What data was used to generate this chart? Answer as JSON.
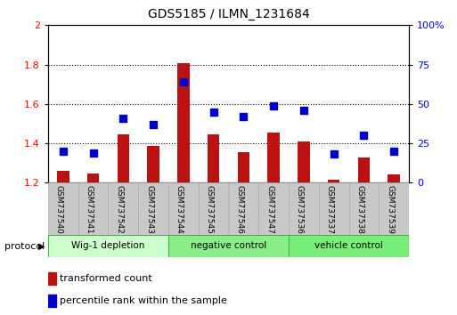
{
  "title": "GDS5185 / ILMN_1231684",
  "samples": [
    "GSM737540",
    "GSM737541",
    "GSM737542",
    "GSM737543",
    "GSM737544",
    "GSM737545",
    "GSM737546",
    "GSM737547",
    "GSM737536",
    "GSM737537",
    "GSM737538",
    "GSM737539"
  ],
  "transformed_count": [
    1.26,
    1.245,
    1.445,
    1.385,
    1.805,
    1.445,
    1.355,
    1.455,
    1.41,
    1.215,
    1.33,
    1.24
  ],
  "percentile_rank": [
    20,
    19,
    41,
    37,
    64,
    45,
    42,
    49,
    46,
    18,
    30,
    20
  ],
  "groups": [
    {
      "label": "Wig-1 depletion",
      "start": 0,
      "end": 3,
      "color": "#ccffcc"
    },
    {
      "label": "negative control",
      "start": 4,
      "end": 7,
      "color": "#88ee88"
    },
    {
      "label": "vehicle control",
      "start": 8,
      "end": 11,
      "color": "#77ee77"
    }
  ],
  "ylim_left": [
    1.2,
    2.0
  ],
  "ylim_right": [
    0,
    100
  ],
  "yticks_left": [
    1.2,
    1.4,
    1.6,
    1.8,
    2.0
  ],
  "ytick_labels_left": [
    "1.2",
    "1.4",
    "1.6",
    "1.8",
    "2"
  ],
  "yticks_right": [
    0,
    25,
    50,
    75,
    100
  ],
  "ytick_labels_right": [
    "0",
    "25",
    "50",
    "75",
    "100%"
  ],
  "bar_color": "#bb1111",
  "dot_color": "#0000cc",
  "bar_width": 0.4,
  "dot_size": 30,
  "sample_box_color": "#c8c8c8",
  "group_border_color": "#008800"
}
